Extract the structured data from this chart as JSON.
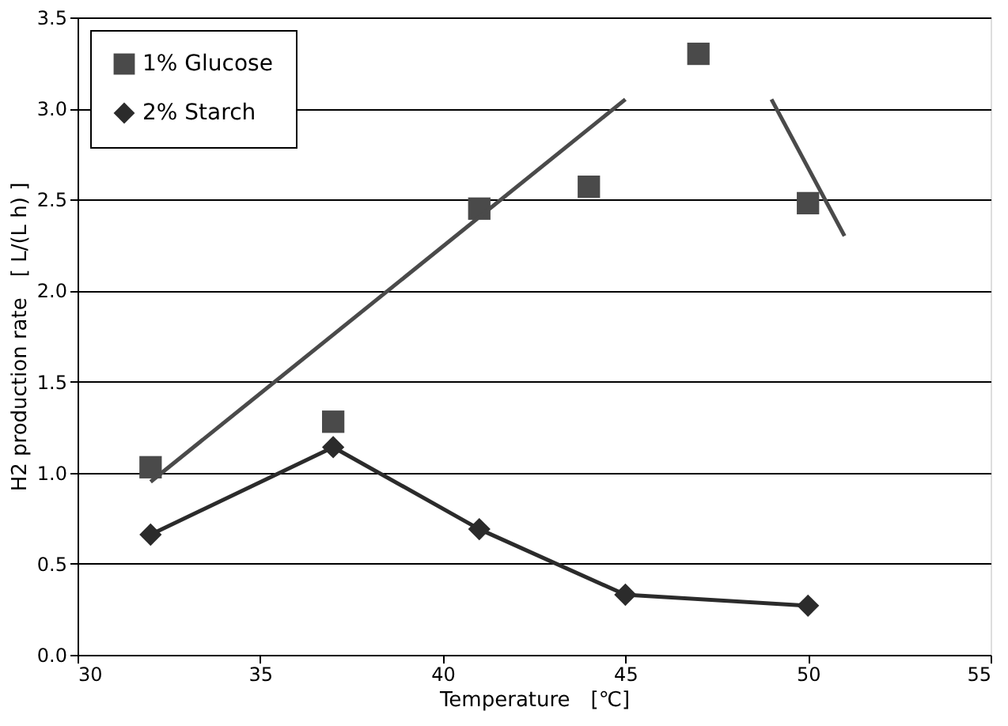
{
  "chart_data": {
    "type": "scatter",
    "xlabel": "Temperature　[℃]",
    "ylabel": "H2 production rate　[ L/(L h) ]",
    "xlim": [
      30,
      55
    ],
    "xticks": [
      30,
      35,
      40,
      45,
      50,
      55
    ],
    "ylim": [
      0,
      3.5
    ],
    "yticks": [
      {
        "value": 0,
        "label": "0.0"
      },
      {
        "value": 0.5,
        "label": "0.5"
      },
      {
        "value": 1,
        "label": "1.0"
      },
      {
        "value": 1.5,
        "label": "1.5"
      },
      {
        "value": 2,
        "label": "2.0"
      },
      {
        "value": 2.5,
        "label": "2.5"
      },
      {
        "value": 3,
        "label": "3.0"
      },
      {
        "value": 3.5,
        "label": "3.5"
      }
    ],
    "grid": "y",
    "legend": "top left",
    "series": [
      {
        "name": "1% Glucose",
        "marker": "square",
        "color": "#4a4a4a",
        "x": [
          32,
          37,
          41,
          44,
          47,
          50
        ],
        "values": [
          1.03,
          1.28,
          2.45,
          2.57,
          3.3,
          2.48
        ]
      },
      {
        "name": "2% Starch",
        "type": "line",
        "marker": "diamond",
        "color": "#2b2b2b",
        "x": [
          32,
          37,
          41,
          45,
          50
        ],
        "values": [
          0.66,
          1.14,
          0.69,
          0.33,
          0.27
        ]
      },
      {
        "type": "line",
        "marker": "none",
        "color": "#4a4a4a",
        "x": [
          32,
          45
        ],
        "values": [
          0.95,
          3.05
        ]
      },
      {
        "type": "line",
        "marker": "none",
        "color": "#4a4a4a",
        "x": [
          49,
          51
        ],
        "values": [
          3.05,
          2.3
        ]
      }
    ]
  }
}
